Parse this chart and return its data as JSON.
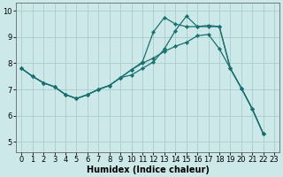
{
  "title": "",
  "xlabel": "Humidex (Indice chaleur)",
  "bg_color": "#cce8e8",
  "grid_color": "#aacccc",
  "line_color": "#1a7070",
  "xlim": [
    -0.5,
    23.5
  ],
  "ylim": [
    4.6,
    10.3
  ],
  "xticks": [
    0,
    1,
    2,
    3,
    4,
    5,
    6,
    7,
    8,
    9,
    10,
    11,
    12,
    13,
    14,
    15,
    16,
    17,
    18,
    19,
    20,
    21,
    22,
    23
  ],
  "yticks": [
    5,
    6,
    7,
    8,
    9,
    10
  ],
  "line1_x": [
    0,
    1,
    2,
    3,
    4,
    5,
    6,
    7,
    8,
    9,
    10,
    11,
    12,
    13,
    14,
    15,
    16,
    17,
    18,
    19,
    20,
    21,
    22
  ],
  "line1_y": [
    7.8,
    7.5,
    7.25,
    7.1,
    6.8,
    6.65,
    6.8,
    7.0,
    7.15,
    7.45,
    7.75,
    8.0,
    8.2,
    8.45,
    8.65,
    8.8,
    9.05,
    9.1,
    8.55,
    7.8,
    7.05,
    6.25,
    5.3
  ],
  "line2_x": [
    0,
    1,
    2,
    3,
    4,
    5,
    6,
    7,
    8,
    9,
    10,
    11,
    12,
    13,
    14,
    15,
    16,
    17,
    18,
    19,
    20,
    21,
    22
  ],
  "line2_y": [
    7.8,
    7.5,
    7.25,
    7.1,
    6.8,
    6.65,
    6.8,
    7.0,
    7.15,
    7.45,
    7.55,
    7.8,
    8.05,
    8.55,
    9.25,
    9.8,
    9.4,
    9.4,
    9.4,
    7.8,
    7.05,
    6.25,
    5.3
  ],
  "line3_x": [
    0,
    1,
    2,
    3,
    4,
    5,
    6,
    7,
    8,
    9,
    10,
    11,
    12,
    13,
    14,
    15,
    16,
    17,
    18,
    19,
    20,
    21,
    22
  ],
  "line3_y": [
    7.8,
    7.5,
    7.25,
    7.1,
    6.8,
    6.65,
    6.8,
    7.0,
    7.15,
    7.45,
    7.75,
    8.05,
    9.2,
    9.75,
    9.5,
    9.4,
    9.4,
    9.45,
    9.4,
    7.8,
    7.05,
    6.25,
    5.3
  ],
  "marker_size": 2.2,
  "line_width": 0.9,
  "xlabel_fontsize": 7,
  "tick_fontsize": 6
}
